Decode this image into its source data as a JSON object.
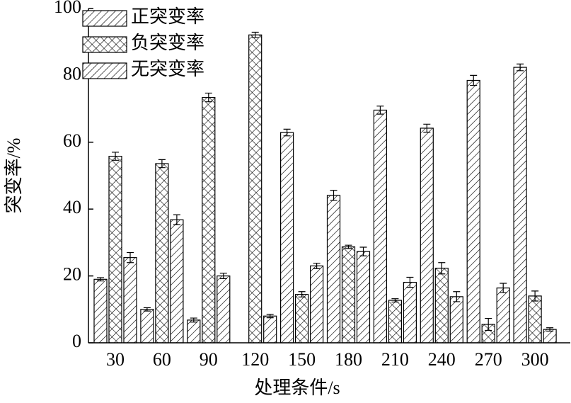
{
  "chart_data": {
    "type": "bar",
    "x_label": "处理条件/s",
    "y_label": "突变率/%",
    "categories": [
      "30",
      "60",
      "90",
      "120",
      "150",
      "180",
      "210",
      "240",
      "270",
      "300"
    ],
    "series": [
      {
        "name": "正突变率",
        "color": "#000000",
        "hatch": "diagonal",
        "values": [
          19,
          10,
          6.8,
          0,
          62.9,
          44.1,
          69.6,
          64.2,
          78.5,
          82.4
        ],
        "errors": [
          0.5,
          0.5,
          0.6,
          0,
          1,
          1.5,
          1.2,
          1.2,
          1.5,
          1
        ]
      },
      {
        "name": "负突变率",
        "color": "#000000",
        "hatch": "cross",
        "values": [
          55.8,
          53.6,
          73.4,
          92.1,
          14.5,
          28.7,
          12.7,
          22.3,
          5.5,
          14
        ],
        "errors": [
          1.2,
          1.2,
          1.3,
          0.8,
          0.8,
          0.5,
          0.5,
          1.7,
          1.8,
          1.5
        ]
      },
      {
        "name": "无突变率",
        "color": "#000000",
        "hatch": "diagonal",
        "values": [
          25.5,
          36.8,
          20,
          8,
          23,
          27.3,
          18.1,
          13.8,
          16.4,
          4
        ],
        "errors": [
          1.5,
          1.5,
          0.8,
          0.5,
          0.8,
          1.3,
          1.5,
          1.5,
          1.4,
          0.5
        ]
      }
    ],
    "ylim": [
      0,
      100
    ],
    "yticks": [
      0,
      20,
      40,
      60,
      80,
      100
    ],
    "grid": false,
    "legend": "upper left"
  }
}
